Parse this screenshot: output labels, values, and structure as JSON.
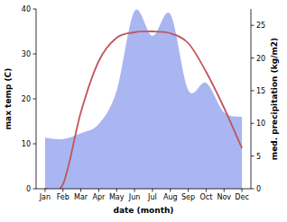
{
  "chart_data": {
    "type": "line",
    "x_label": "date (month)",
    "y_label": "max temp (C)",
    "y2_label": "med. precipitation (kg/m2)",
    "categories": [
      "Jan",
      "Feb",
      "Mar",
      "Apr",
      "May",
      "Jun",
      "Jul",
      "Aug",
      "Sep",
      "Oct",
      "Nov",
      "Dec"
    ],
    "ylim": [
      0,
      40
    ],
    "yticks": [
      0,
      10,
      20,
      30,
      40
    ],
    "y2lim": [
      0,
      27.5
    ],
    "y2ticks": [
      0,
      5,
      10,
      15,
      20,
      25
    ],
    "series": [
      {
        "name": "med. precipitation",
        "type": "area",
        "axis": "y2",
        "color": "#aab6f2",
        "values": [
          7.8,
          7.6,
          8.5,
          9.9,
          15,
          27.2,
          23.4,
          26.7,
          15.1,
          16.2,
          11.7,
          11
        ]
      },
      {
        "name": "max temp",
        "type": "line",
        "color": "#c0565b",
        "values": [
          0,
          1,
          17,
          28.4,
          33.6,
          34.8,
          35,
          34.6,
          32.4,
          26,
          18,
          9
        ]
      }
    ]
  }
}
